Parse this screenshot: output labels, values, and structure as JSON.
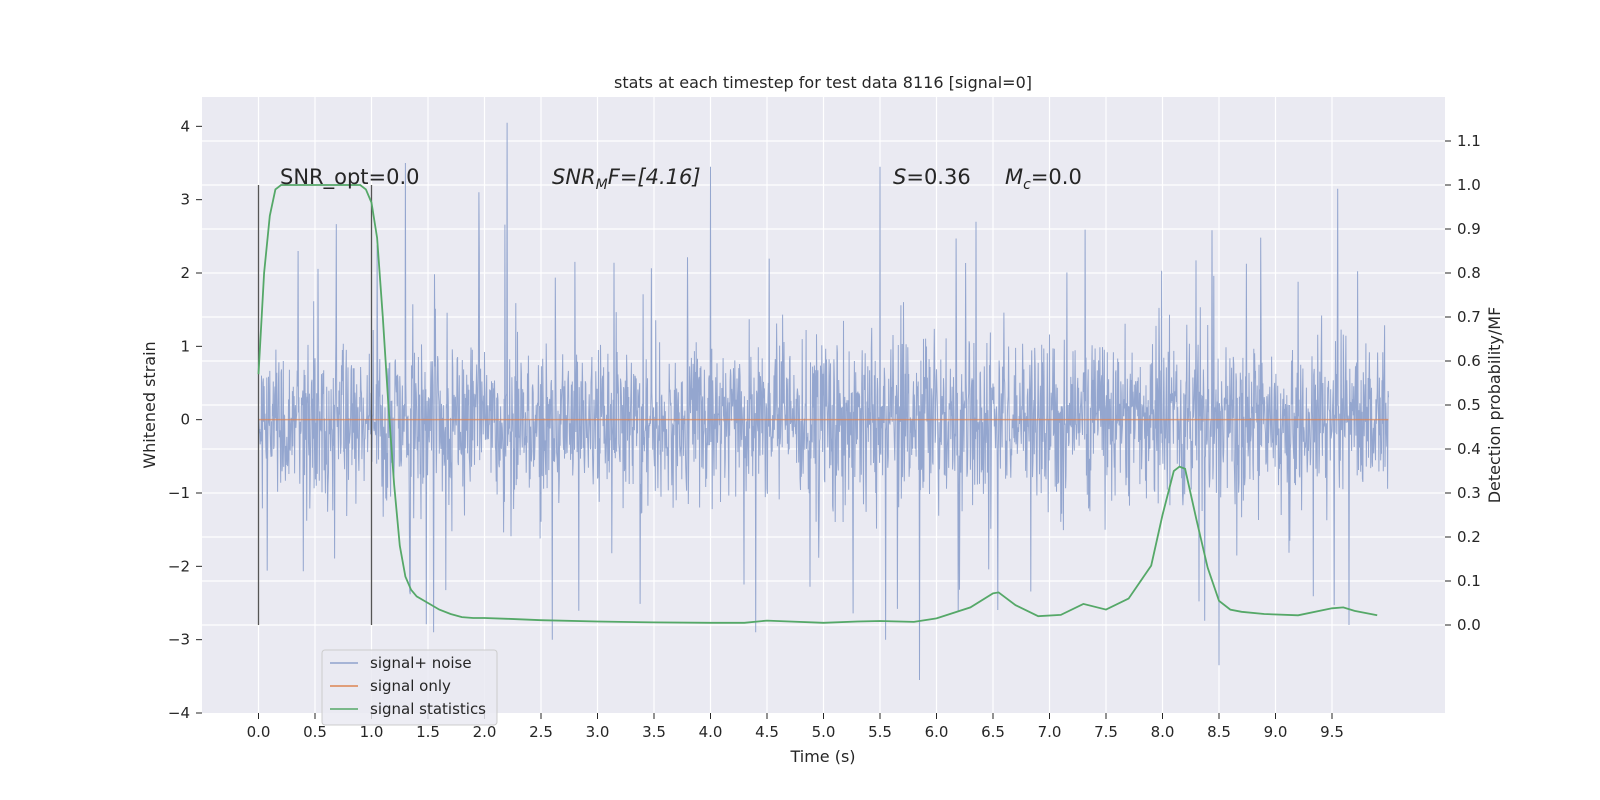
{
  "chart_data": {
    "type": "line",
    "title": "stats at each timestep for test data 8116 [signal=0]",
    "xlabel": "Time (s)",
    "ylabel": "Whitened strain",
    "y2label": "Detection probability/MF",
    "xlim": [
      -0.5,
      10.5
    ],
    "ylim": [
      -4,
      4.4
    ],
    "y2lim": [
      -0.2,
      1.2
    ],
    "xticks": [
      "0.0",
      "0.5",
      "1.0",
      "1.5",
      "2.0",
      "2.5",
      "3.0",
      "3.5",
      "4.0",
      "4.5",
      "5.0",
      "5.5",
      "6.0",
      "6.5",
      "7.0",
      "7.5",
      "8.0",
      "8.5",
      "9.0",
      "9.5"
    ],
    "yticks": [
      "4",
      "3",
      "2",
      "1",
      "0",
      "−1",
      "−2",
      "−3",
      "−4"
    ],
    "y2ticks": [
      "1.1",
      "1.0",
      "0.9",
      "0.8",
      "0.7",
      "0.6",
      "0.5",
      "0.4",
      "0.3",
      "0.2",
      "0.1",
      "0.0"
    ],
    "grid": true,
    "legend_position": "lower-left",
    "annotations": {
      "snr_opt": "SNR_opt=0.0",
      "snr_mf_sym": "SNR",
      "snr_mf_sub": "M",
      "snr_mf_rest": "F=[4.16]",
      "s_sym": "S",
      "s_val": "=0.36",
      "mc_sym": "M",
      "mc_sub": "c",
      "mc_val": "=0.0"
    },
    "marker_lines_x": [
      0.0,
      1.0
    ],
    "series": [
      {
        "name": "signal+ noise",
        "color": "#8fa2cc",
        "style": "noise band",
        "x_range": [
          0.0,
          10.0
        ],
        "typical_range": [
          -1.4,
          1.4
        ],
        "envelope_max": 4.05,
        "envelope_min": -3.55,
        "spikes": [
          {
            "x": 0.35,
            "y": 2.3
          },
          {
            "x": 1.3,
            "y": 3.5
          },
          {
            "x": 1.95,
            "y": 3.1
          },
          {
            "x": 2.2,
            "y": 4.05
          },
          {
            "x": 4.0,
            "y": 3.45
          },
          {
            "x": 5.5,
            "y": 3.45
          },
          {
            "x": 6.35,
            "y": 2.7
          },
          {
            "x": 9.55,
            "y": 3.15
          },
          {
            "x": 2.6,
            "y": -3.0
          },
          {
            "x": 4.4,
            "y": -2.9
          },
          {
            "x": 5.85,
            "y": -3.55
          },
          {
            "x": 5.55,
            "y": -3.0
          },
          {
            "x": 8.5,
            "y": -3.35
          },
          {
            "x": 9.65,
            "y": -2.8
          },
          {
            "x": 1.55,
            "y": -2.9
          }
        ]
      },
      {
        "name": "signal only",
        "color": "#dd8452",
        "x": [
          0.0,
          10.0
        ],
        "y": [
          0.0,
          0.0
        ]
      },
      {
        "name": "signal statistics",
        "color": "#55a868",
        "axis": "right",
        "x": [
          0.0,
          0.05,
          0.1,
          0.15,
          0.2,
          0.3,
          0.5,
          0.7,
          0.8,
          0.9,
          0.95,
          1.0,
          1.05,
          1.1,
          1.15,
          1.2,
          1.25,
          1.3,
          1.35,
          1.4,
          1.5,
          1.6,
          1.7,
          1.8,
          1.9,
          2.0,
          2.2,
          2.5,
          3.0,
          3.5,
          4.0,
          4.3,
          4.5,
          4.7,
          5.0,
          5.3,
          5.5,
          5.8,
          6.0,
          6.3,
          6.5,
          6.55,
          6.7,
          6.9,
          7.1,
          7.3,
          7.5,
          7.7,
          7.9,
          8.0,
          8.1,
          8.15,
          8.2,
          8.3,
          8.4,
          8.5,
          8.6,
          8.7,
          8.9,
          9.2,
          9.5,
          9.6,
          9.7,
          9.9
        ],
        "y": [
          0.57,
          0.8,
          0.93,
          0.99,
          1.0,
          1.0,
          1.0,
          1.0,
          1.0,
          1.0,
          0.99,
          0.96,
          0.88,
          0.7,
          0.5,
          0.32,
          0.18,
          0.11,
          0.08,
          0.065,
          0.05,
          0.035,
          0.025,
          0.018,
          0.016,
          0.016,
          0.014,
          0.011,
          0.008,
          0.006,
          0.005,
          0.005,
          0.01,
          0.008,
          0.005,
          0.008,
          0.009,
          0.007,
          0.015,
          0.04,
          0.072,
          0.074,
          0.045,
          0.02,
          0.023,
          0.048,
          0.035,
          0.06,
          0.135,
          0.25,
          0.35,
          0.36,
          0.355,
          0.24,
          0.13,
          0.055,
          0.035,
          0.03,
          0.025,
          0.022,
          0.038,
          0.04,
          0.032,
          0.022
        ]
      }
    ]
  }
}
